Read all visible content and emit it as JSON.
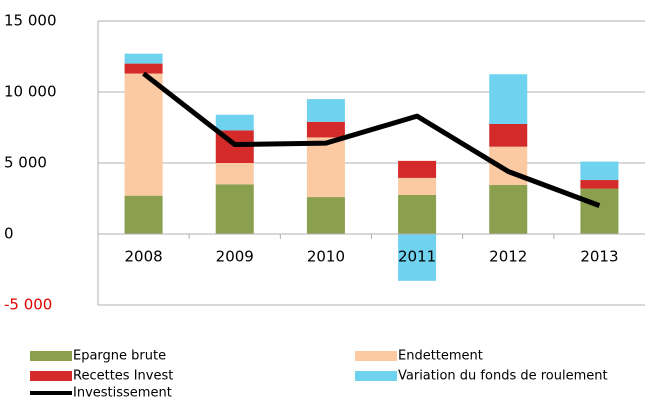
{
  "chart_data": {
    "type": "bar",
    "stacked": true,
    "categories": [
      "2008",
      "2009",
      "2010",
      "2011",
      "2012",
      "2013"
    ],
    "series": [
      {
        "name": "Epargne brute",
        "color": "#8aa04e",
        "values": [
          2700,
          3500,
          2600,
          2750,
          3450,
          3200
        ]
      },
      {
        "name": "Endettement",
        "color": "#fbc9a2",
        "values": [
          8600,
          1500,
          4200,
          1200,
          2700,
          0
        ]
      },
      {
        "name": "Recettes Invest",
        "color": "#d42a2a",
        "values": [
          700,
          2300,
          1100,
          1200,
          1600,
          600
        ]
      },
      {
        "name": "Variation du fonds de roulement",
        "color": "#6fd3f0",
        "values": [
          700,
          1100,
          1600,
          -3300,
          3500,
          1300
        ]
      },
      {
        "name": "Investissement",
        "type": "line",
        "color": "#000000",
        "values": [
          11300,
          6300,
          6400,
          8300,
          4400,
          2000
        ]
      }
    ],
    "ylim": [
      -5000,
      15000
    ],
    "yticks": [
      {
        "value": -5000,
        "label": "-5 000"
      },
      0,
      {
        "value": 5000,
        "label": "5 000"
      },
      {
        "value": 10000,
        "label": "10 000"
      },
      {
        "value": 15000,
        "label": "15 000"
      }
    ],
    "negative_tick_color": "#e00000",
    "grid": true
  }
}
